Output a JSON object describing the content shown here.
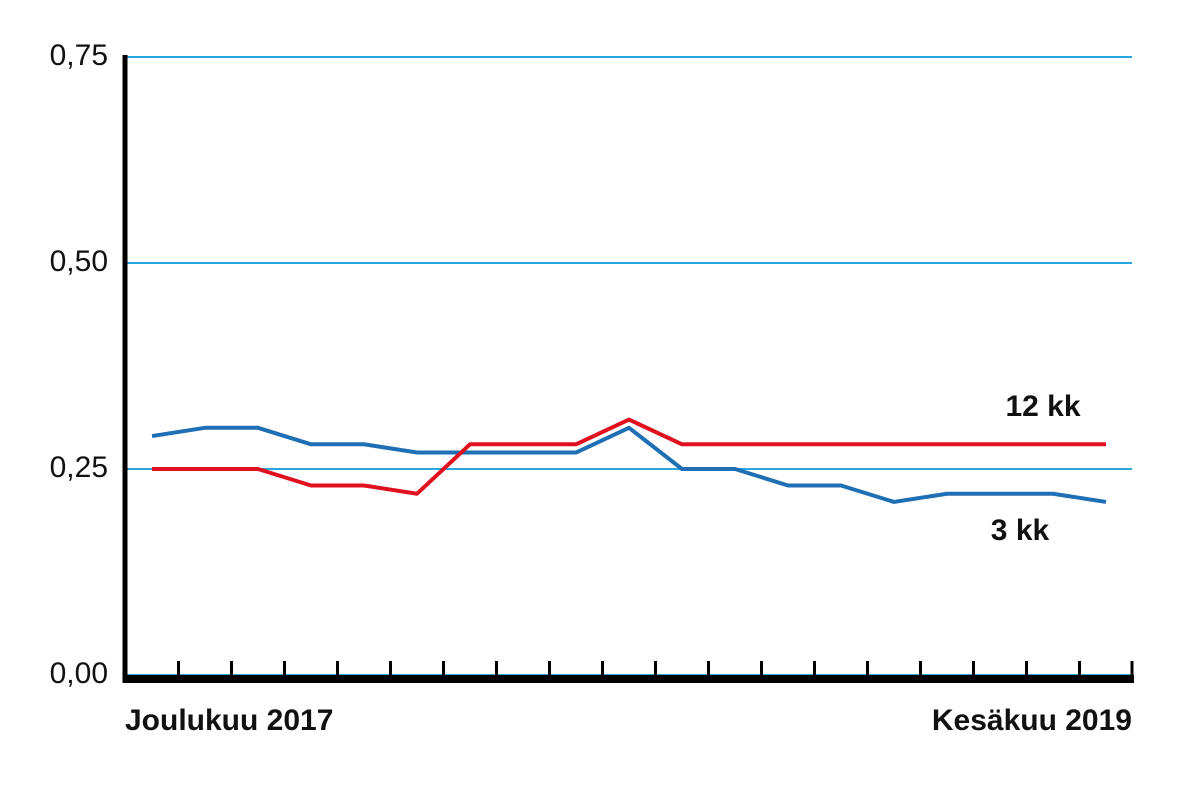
{
  "chart_data": {
    "type": "line",
    "categories": [
      "Joulukuu 2017",
      null,
      null,
      null,
      null,
      null,
      null,
      null,
      null,
      null,
      null,
      null,
      null,
      null,
      null,
      null,
      null,
      null,
      "Kesäkuu 2019"
    ],
    "series": [
      {
        "name": "3 kk",
        "color": "#1f6fb4",
        "values": [
          0.29,
          0.3,
          0.3,
          0.28,
          0.28,
          0.27,
          0.27,
          0.27,
          0.27,
          0.3,
          0.25,
          0.25,
          0.23,
          0.23,
          0.21,
          0.22,
          0.22,
          0.22,
          0.21
        ]
      },
      {
        "name": "12 kk",
        "color": "#e0101e",
        "values": [
          0.25,
          0.25,
          0.25,
          0.23,
          0.23,
          0.22,
          0.28,
          0.28,
          0.28,
          0.31,
          0.28,
          0.28,
          0.28,
          0.28,
          0.28,
          0.28,
          0.28,
          0.28,
          0.28
        ]
      }
    ],
    "ylim": [
      0,
      0.75
    ],
    "yticks": [
      {
        "value": 0,
        "label": "0,00"
      },
      {
        "value": 0.25,
        "label": "0,25"
      },
      {
        "value": 0.5,
        "label": "0,50"
      },
      {
        "value": 0.75,
        "label": "0,75"
      }
    ],
    "grid": true,
    "grid_color": "#29a8e0"
  }
}
